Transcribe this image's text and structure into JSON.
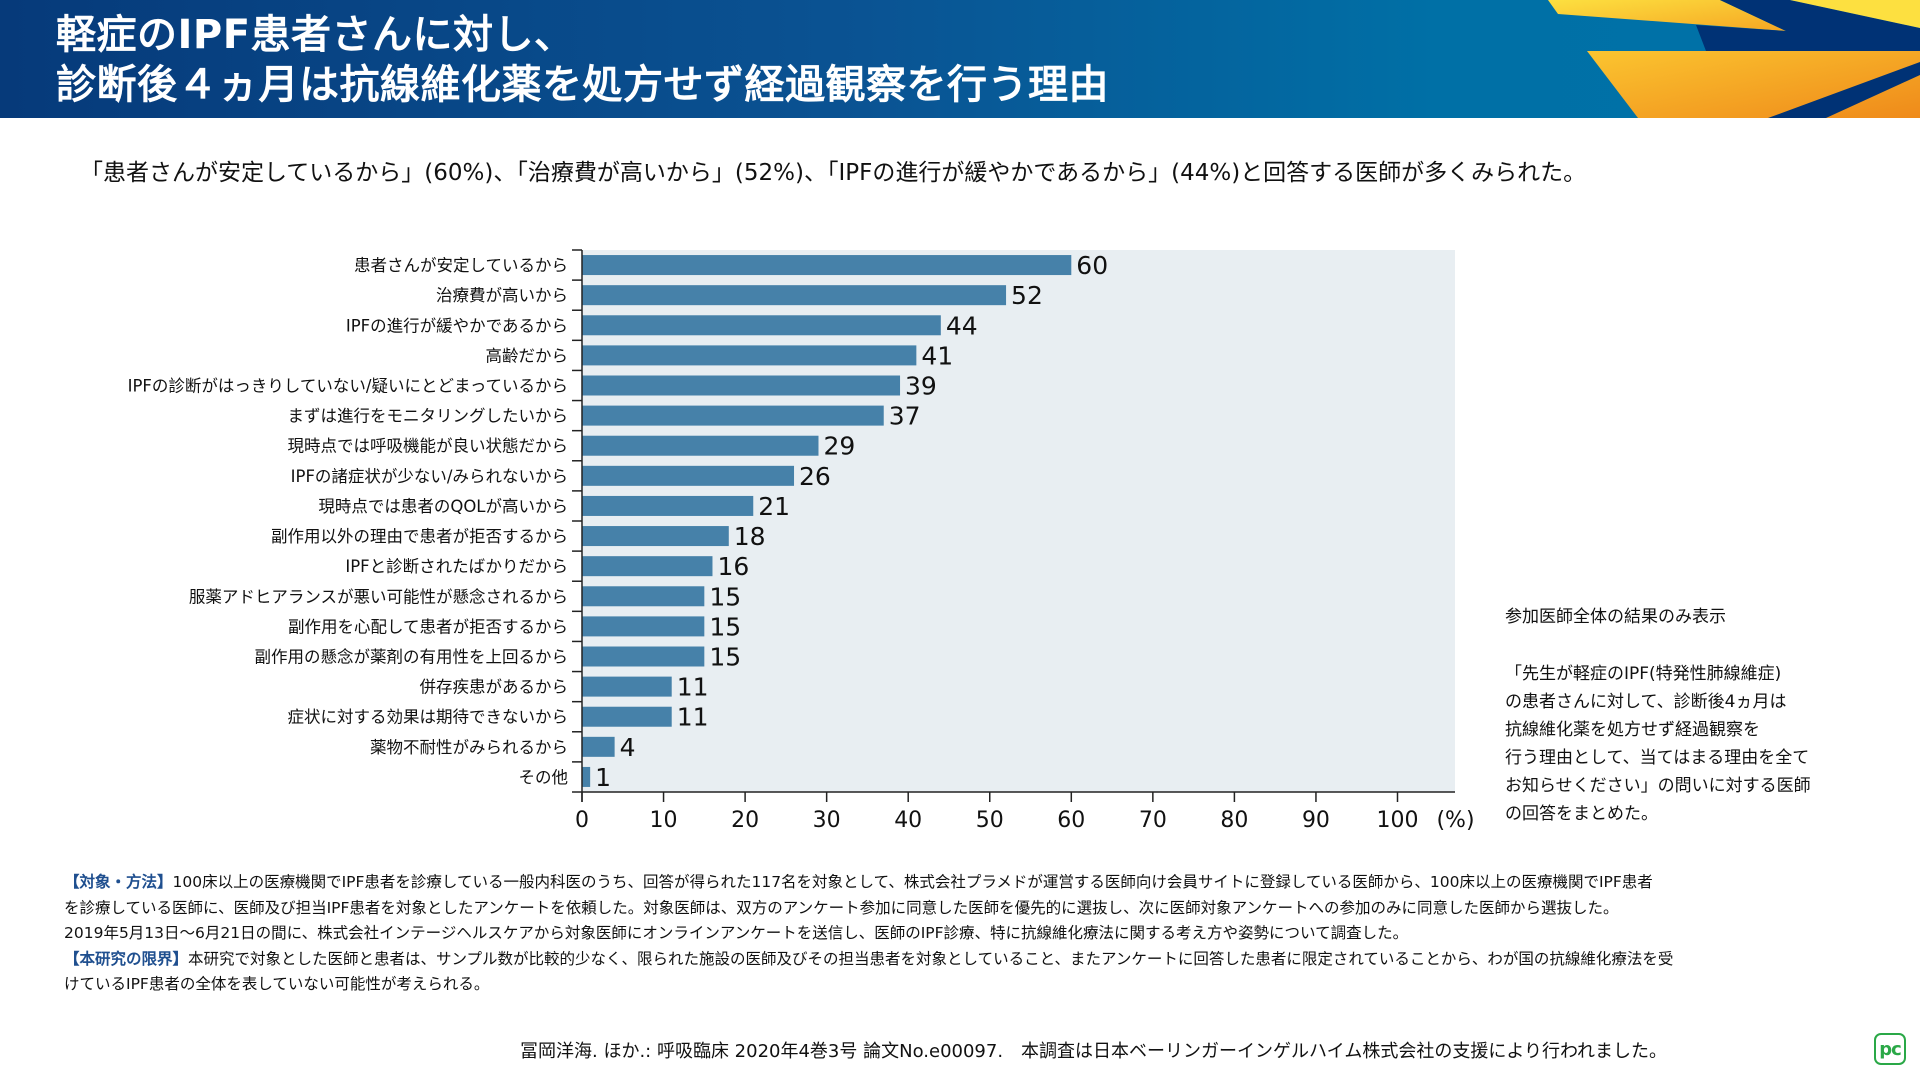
{
  "header": {
    "title_line1": "軽症のIPF患者さんに対し、",
    "title_line2": "診断後４ヵ月は抗線維化薬を処方せず経過観察を行う理由",
    "colors": {
      "bg_dark": "#063a7a",
      "bg_light": "#0072a8",
      "accent_yellow": "#fbd236",
      "accent_orange": "#f39a1e",
      "accent_navy": "#003275"
    }
  },
  "subtitle": "「患者さんが安定しているから」(60%)、「治療費が高いから」(52%)、「IPFの進行が緩やかであるから」(44%)と回答する医師が多くみられた。",
  "chart_data": {
    "type": "bar",
    "orientation": "horizontal",
    "categories": [
      "患者さんが安定しているから",
      "治療費が高いから",
      "IPFの進行が緩やかであるから",
      "高齢だから",
      "IPFの診断がはっきりしていない/疑いにとどまっているから",
      "まずは進行をモニタリングしたいから",
      "現時点では呼吸機能が良い状態だから",
      "IPFの諸症状が少ない/みられないから",
      "現時点では患者のQOLが高いから",
      "副作用以外の理由で患者が拒否するから",
      "IPFと診断されたばかりだから",
      "服薬アドヒアランスが悪い可能性が懸念されるから",
      "副作用を心配して患者が拒否するから",
      "副作用の懸念が薬剤の有用性を上回るから",
      "併存疾患があるから",
      "症状に対する効果は期待できないから",
      "薬物不耐性がみられるから",
      "その他"
    ],
    "values": [
      60,
      52,
      44,
      41,
      39,
      37,
      29,
      26,
      21,
      18,
      16,
      15,
      15,
      15,
      11,
      11,
      4,
      1
    ],
    "title": "",
    "xlabel": "(%)",
    "ylabel": "",
    "xlim": [
      0,
      100
    ],
    "xticks": [
      0,
      10,
      20,
      30,
      40,
      50,
      60,
      70,
      80,
      90,
      100
    ],
    "xtick_labels": [
      "0",
      "10",
      "20",
      "30",
      "40",
      "50",
      "60",
      "70",
      "80",
      "90",
      "100"
    ],
    "unit_label": "(%)",
    "grid": false,
    "bar_color": "#4681a9",
    "plot_bg": "#e8eef2",
    "data_labels": true
  },
  "notes": {
    "note1": "参加医師全体の結果のみ表示",
    "note2_lines": [
      "「先生が軽症のIPF(特発性肺線維症)",
      "の患者さんに対して、診断後4ヵ月は",
      "抗線維化薬を処方せず経過観察を",
      "行う理由として、当てはまる理由を全て",
      "お知らせください」の問いに対する医師",
      "の回答をまとめた。"
    ]
  },
  "methods": {
    "label1": "【対象・方法】",
    "line1": "100床以上の医療機関でIPF患者を診療している一般内科医のうち、回答が得られた117名を対象として、株式会社プラメドが運営する医師向け会員サイトに登録している医師から、100床以上の医療機関でIPF患者",
    "line2": "を診療している医師に、医師及び担当IPF患者を対象としたアンケートを依頼した。対象医師は、双方のアンケート参加に同意した医師を優先的に選抜し、次に医師対象アンケートへの参加のみに同意した医師から選抜した。",
    "line3": "2019年5月13日〜6月21日の間に、株式会社インテージヘルスケアから対象医師にオンラインアンケートを送信し、医師のIPF診療、特に抗線維化療法に関する考え方や姿勢について調査した。",
    "label2": "【本研究の限界】",
    "line4": "本研究で対象とした医師と患者は、サンプル数が比較的少なく、限られた施設の医師及びその担当患者を対象としていること、またアンケートに回答した患者に限定されていることから、わが国の抗線維化療法を受",
    "line5": "けているIPF患者の全体を表していない可能性が考えられる。"
  },
  "citation": "冨岡洋海. ほか.: 呼吸臨床 2020年4巻3号 論文No.e00097.　本調査は日本ベーリンガーインゲルハイム株式会社の支援により行われました。",
  "logo": {
    "text": "pc",
    "color": "#2aa847"
  }
}
